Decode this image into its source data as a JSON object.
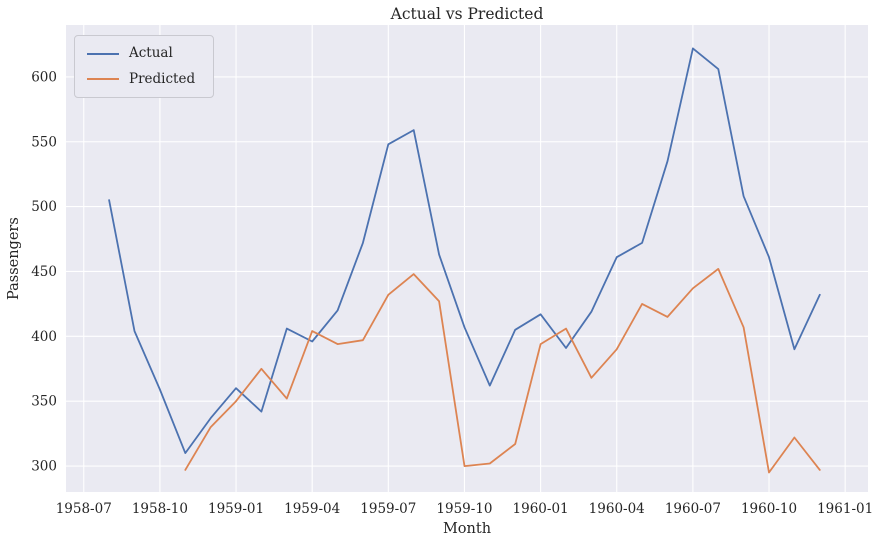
{
  "chart_data": {
    "type": "line",
    "title": "Actual vs Predicted",
    "xlabel": "Month",
    "ylabel": "Passengers",
    "grid": true,
    "legend_position": "upper-left",
    "x_tick_labels": [
      "1958-07",
      "1958-10",
      "1959-01",
      "1959-04",
      "1959-07",
      "1959-10",
      "1960-01",
      "1960-04",
      "1960-07",
      "1960-10",
      "1961-01"
    ],
    "x_tick_positions": [
      0,
      3,
      6,
      9,
      12,
      15,
      18,
      21,
      24,
      27,
      30
    ],
    "y_ticks": [
      300,
      350,
      400,
      450,
      500,
      550,
      600
    ],
    "xlim": [
      -0.7,
      30.9
    ],
    "ylim": [
      280,
      640
    ],
    "x_index_offset": 1,
    "months": [
      "1958-08",
      "1958-09",
      "1958-10",
      "1958-11",
      "1958-12",
      "1959-01",
      "1959-02",
      "1959-03",
      "1959-04",
      "1959-05",
      "1959-06",
      "1959-07",
      "1959-08",
      "1959-09",
      "1959-10",
      "1959-11",
      "1959-12",
      "1960-01",
      "1960-02",
      "1960-03",
      "1960-04",
      "1960-05",
      "1960-06",
      "1960-07",
      "1960-08",
      "1960-09",
      "1960-10",
      "1960-11",
      "1960-12"
    ],
    "series": [
      {
        "name": "Actual",
        "color": "#4c72b0",
        "values": [
          505,
          404,
          359,
          310,
          337,
          360,
          342,
          406,
          396,
          420,
          472,
          548,
          559,
          463,
          407,
          362,
          405,
          417,
          391,
          419,
          461,
          472,
          535,
          622,
          606,
          508,
          461,
          390,
          432
        ]
      },
      {
        "name": "Predicted",
        "color": "#dd8452",
        "values": [
          null,
          null,
          null,
          297,
          330,
          350,
          375,
          352,
          404,
          394,
          397,
          432,
          448,
          427,
          300,
          302,
          317,
          394,
          406,
          368,
          390,
          425,
          415,
          437,
          452,
          407,
          295,
          322,
          297
        ]
      }
    ],
    "colors": {
      "axes_background": "#eaeaf2",
      "gridline": "#ffffff",
      "text": "#262626"
    }
  }
}
